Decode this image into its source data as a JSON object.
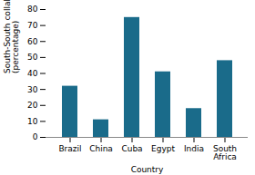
{
  "chart_data": {
    "type": "bar",
    "categories": [
      "Brazil",
      "China",
      "Cuba",
      "Egypt",
      "India",
      "South\nAfrica"
    ],
    "values": [
      32,
      11,
      75,
      41,
      18,
      48
    ],
    "color": "#1a6b8a",
    "xlabel": "Country",
    "ylabel": "South-South collaboration\n(percentage)",
    "ylim": [
      0,
      80
    ],
    "yticks": [
      0,
      10,
      20,
      30,
      40,
      50,
      60,
      70,
      80
    ],
    "grid": false
  }
}
